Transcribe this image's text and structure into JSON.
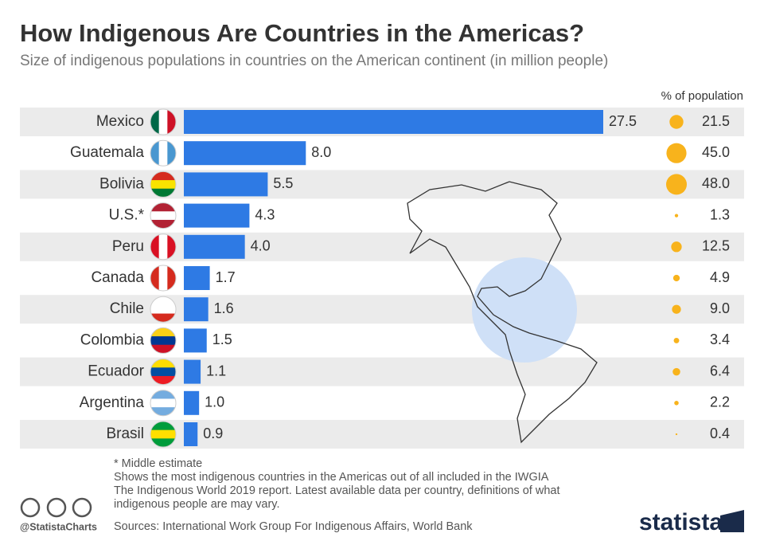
{
  "chart_data": {
    "type": "bar",
    "orientation": "horizontal",
    "title": "How Indigenous Are Countries in the Americas?",
    "subtitle": "Size of indigenous populations in countries on the American continent (in million people)",
    "categories": [
      "Mexico",
      "Guatemala",
      "Bolivia",
      "U.S.*",
      "Peru",
      "Canada",
      "Chile",
      "Colombia",
      "Ecuador",
      "Argentina",
      "Brasil"
    ],
    "values": [
      27.5,
      8.0,
      5.5,
      4.3,
      4.0,
      1.7,
      1.6,
      1.5,
      1.1,
      1.0,
      0.9
    ],
    "value_labels": [
      "27.5",
      "8.0",
      "5.5",
      "4.3",
      "4.0",
      "1.7",
      "1.6",
      "1.5",
      "1.1",
      "1.0",
      "0.9"
    ],
    "color": "#2e7ae4",
    "share": {
      "name": "% of population",
      "color": "#f8b31c",
      "values": [
        21.5,
        45.0,
        48.0,
        1.3,
        12.5,
        4.9,
        9.0,
        3.4,
        6.4,
        2.2,
        0.4
      ],
      "value_labels": [
        "21.5",
        "45.0",
        "48.0",
        "1.3",
        "12.5",
        "4.9",
        "9.0",
        "3.4",
        "6.4",
        "2.2",
        "0.4"
      ]
    },
    "notes": [
      "* Middle estimate",
      "Shows the most indigenous countries in the Americas out of all included in the IWGIA",
      "The Indigenous World 2019 report. Latest available data per country, definitions of what",
      "indigenous people are may vary."
    ],
    "source": "Sources: International Work Group For Indigenous Affairs, World Bank",
    "credit": "@StatistaCharts",
    "brand": "statista"
  }
}
